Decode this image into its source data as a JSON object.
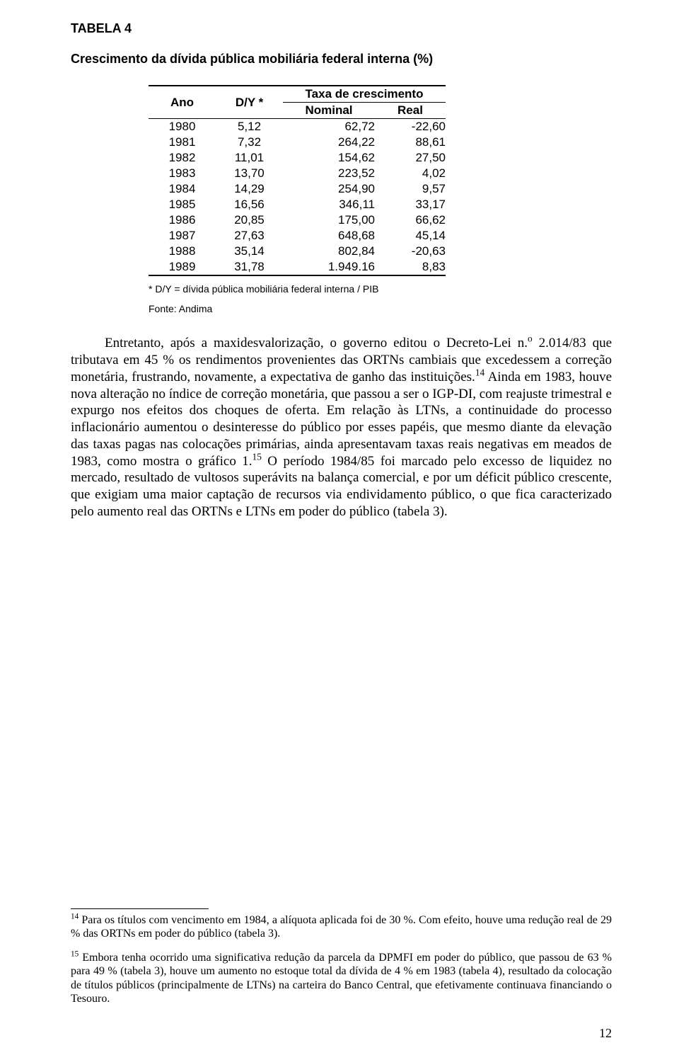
{
  "table": {
    "label": "TABELA 4",
    "title": "Crescimento da dívida pública mobiliária federal interna (%)",
    "header": {
      "ano": "Ano",
      "dy": "D/Y *",
      "group": "Taxa de crescimento",
      "nominal": "Nominal",
      "real": "Real"
    },
    "rows": [
      {
        "ano": "1980",
        "dy": "5,12",
        "nominal": "62,72",
        "real": "-22,60"
      },
      {
        "ano": "1981",
        "dy": "7,32",
        "nominal": "264,22",
        "real": "88,61"
      },
      {
        "ano": "1982",
        "dy": "11,01",
        "nominal": "154,62",
        "real": "27,50"
      },
      {
        "ano": "1983",
        "dy": "13,70",
        "nominal": "223,52",
        "real": "4,02"
      },
      {
        "ano": "1984",
        "dy": "14,29",
        "nominal": "254,90",
        "real": "9,57"
      },
      {
        "ano": "1985",
        "dy": "16,56",
        "nominal": "346,11",
        "real": "33,17"
      },
      {
        "ano": "1986",
        "dy": "20,85",
        "nominal": "175,00",
        "real": "66,62"
      },
      {
        "ano": "1987",
        "dy": "27,63",
        "nominal": "648,68",
        "real": "45,14"
      },
      {
        "ano": "1988",
        "dy": "35,14",
        "nominal": "802,84",
        "real": "-20,63"
      },
      {
        "ano": "1989",
        "dy": "31,78",
        "nominal": "1.949.16",
        "real": "8,83"
      }
    ],
    "note1": "* D/Y = dívida pública mobiliária federal interna / PIB",
    "note2": "Fonte: Andima"
  },
  "paragraph": {
    "seg1": "Entretanto, após a maxidesvalorização, o governo editou o Decreto-Lei n.",
    "sup1": "o",
    "seg2": " 2.014/83 que tributava em 45 % os rendimentos provenientes das ORTNs cambiais que excedessem a correção monetária, frustrando, novamente, a expectativa de ganho das instituições.",
    "sup2": "14",
    "seg3": " Ainda em 1983, houve nova alteração no índice de correção monetária, que passou a ser o IGP-DI, com reajuste trimestral e expurgo nos efeitos dos choques de oferta. Em relação às LTNs, a continuidade do processo inflacionário aumentou o desinteresse do público por esses papéis, que mesmo diante da elevação das taxas pagas nas colocações primárias, ainda apresentavam taxas reais negativas em meados de 1983, como mostra o gráfico 1.",
    "sup3": "15",
    "seg4": "    O período 1984/85 foi marcado pelo excesso de liquidez no mercado, resultado de vultosos superávits na balança comercial, e por um déficit público crescente, que exigiam uma maior captação de recursos via endividamento público, o que fica caracterizado pelo aumento real das ORTNs e LTNs em poder do público (tabela 3)."
  },
  "footnotes": {
    "fn14": {
      "num": "14",
      "text": " Para os títulos com vencimento em 1984, a alíquota aplicada foi de 30 %. Com efeito, houve uma redução real de 29 % das ORTNs em poder do público (tabela 3)."
    },
    "fn15": {
      "num": "15",
      "text": " Embora tenha ocorrido uma significativa redução da parcela da DPMFI em poder do público, que passou de 63 % para 49 % (tabela 3), houve um aumento no estoque total da dívida de 4 % em 1983 (tabela 4), resultado da colocação de títulos públicos (principalmente de LTNs) na carteira do Banco Central, que efetivamente continuava financiando o Tesouro."
    }
  },
  "page_number": "12"
}
